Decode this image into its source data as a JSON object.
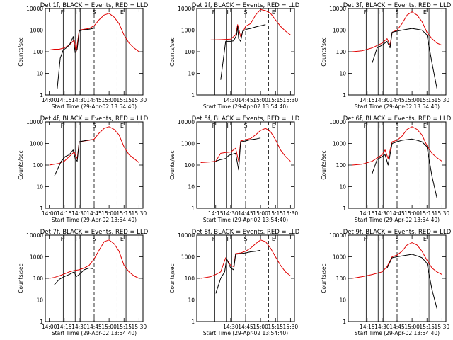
{
  "colors": {
    "events": "#000000",
    "lld": "#e00000",
    "axes": "#000000"
  },
  "chart_data": [
    {
      "type": "line",
      "title": "Det 1f, BLACK = Events, RED = LLD",
      "xlabel": "Start Time (29-Apr-02 13:54:40)",
      "ylabel": "Counts/sec",
      "yscale": "log",
      "ylim": [
        1,
        10000
      ],
      "x_ticks": [
        "14:00",
        "14:15",
        "14:30",
        "14:45",
        "15:00",
        "15:15",
        "15:30"
      ],
      "y_ticks": [
        "1",
        "10",
        "100",
        "1000",
        "10000"
      ],
      "region_labels": [
        "F",
        "I",
        "S",
        "E"
      ],
      "series": [
        {
          "name": "BLACK = Events",
          "color": "#000000",
          "x": [
            "14:08",
            "14:11",
            "14:14",
            "14:17",
            "14:20",
            "14:22",
            "14:24",
            "14:26",
            "14:28",
            "14:30",
            "14:33",
            "14:36",
            "14:40",
            "14:44"
          ],
          "y": [
            2,
            50,
            120,
            150,
            200,
            300,
            500,
            90,
            130,
            900,
            1000,
            1050,
            1100,
            1200
          ]
        },
        {
          "name": "RED = LLD",
          "color": "#e00000",
          "x": [
            "14:00",
            "14:05",
            "14:10",
            "14:15",
            "14:20",
            "14:25",
            "14:27",
            "14:30",
            "14:35",
            "14:40",
            "14:45",
            "14:50",
            "14:55",
            "15:00",
            "15:05",
            "15:10",
            "15:15",
            "15:20",
            "15:25",
            "15:30"
          ],
          "y": [
            120,
            130,
            130,
            150,
            200,
            350,
            100,
            1000,
            1100,
            1200,
            1600,
            3000,
            5000,
            6000,
            4000,
            2000,
            600,
            250,
            150,
            100
          ]
        }
      ]
    },
    {
      "type": "line",
      "title": "Det 2f, BLACK = Events, RED = LLD",
      "xlabel": "Start Time (29-Apr-02 13:54:40)",
      "ylabel": "Counts/sec",
      "yscale": "log",
      "ylim": [
        1,
        10000
      ],
      "x_ticks": [
        "14:30",
        "14:45",
        "15:00",
        "15:15",
        "15:30"
      ],
      "y_ticks": [
        "1",
        "10",
        "100",
        "1000",
        "10000"
      ],
      "region_labels": [
        "F",
        "I",
        "S",
        "E"
      ],
      "series": [
        {
          "name": "BLACK = Events",
          "color": "#000000",
          "x": [
            "14:20",
            "14:25",
            "14:30",
            "14:33",
            "14:36",
            "14:37",
            "14:38",
            "14:40",
            "14:42",
            "14:44",
            "14:46",
            "14:50",
            "14:55",
            "15:00",
            "15:05"
          ],
          "y": [
            5,
            300,
            300,
            320,
            600,
            1500,
            400,
            300,
            900,
            1000,
            1100,
            1200,
            1400,
            1600,
            1800
          ]
        },
        {
          "name": "RED = LLD",
          "color": "#e00000",
          "x": [
            "14:10",
            "14:20",
            "14:30",
            "14:35",
            "14:37",
            "14:40",
            "14:45",
            "14:50",
            "14:55",
            "15:00",
            "15:05",
            "15:10",
            "15:15",
            "15:20",
            "15:25",
            "15:30"
          ],
          "y": [
            350,
            360,
            380,
            600,
            1800,
            500,
            1500,
            2000,
            5000,
            9000,
            8000,
            6000,
            3000,
            1500,
            900,
            600
          ]
        }
      ]
    },
    {
      "type": "line",
      "title": "Det 3f, BLACK = Events, RED = LLD",
      "xlabel": "Start Time (29-Apr-02 13:54:40)",
      "ylabel": "Counts/sec",
      "yscale": "log",
      "ylim": [
        1,
        10000
      ],
      "x_ticks": [
        "14:15",
        "14:30",
        "14:45",
        "15:00",
        "15:15",
        "15:30"
      ],
      "y_ticks": [
        "1",
        "10",
        "100",
        "1000",
        "10000"
      ],
      "region_labels": [
        "F",
        "I",
        "S",
        "E"
      ],
      "series": [
        {
          "name": "BLACK = Events",
          "color": "#000000",
          "x": [
            "14:20",
            "14:25",
            "14:30",
            "14:35",
            "14:38",
            "14:40",
            "14:45",
            "14:50",
            "14:55",
            "15:00",
            "15:05",
            "15:10",
            "15:15",
            "15:20",
            "15:25"
          ],
          "y": [
            30,
            150,
            200,
            300,
            150,
            800,
            900,
            1000,
            1100,
            1200,
            1100,
            1000,
            600,
            30,
            2
          ]
        },
        {
          "name": "RED = LLD",
          "color": "#e00000",
          "x": [
            "14:00",
            "14:10",
            "14:20",
            "14:30",
            "14:35",
            "14:38",
            "14:40",
            "14:45",
            "14:50",
            "14:55",
            "15:00",
            "15:05",
            "15:10",
            "15:15",
            "15:20",
            "15:25",
            "15:30"
          ],
          "y": [
            100,
            110,
            150,
            250,
            400,
            200,
            800,
            1000,
            2000,
            5000,
            7000,
            5000,
            2500,
            800,
            400,
            250,
            200
          ]
        }
      ]
    },
    {
      "type": "line",
      "title": "Det 4f, BLACK = Events, RED = LLD",
      "xlabel": "Start Time (29-Apr-02 13:54:40)",
      "ylabel": "Counts/sec",
      "yscale": "log",
      "ylim": [
        1,
        10000
      ],
      "x_ticks": [
        "14:00",
        "14:15",
        "14:30",
        "14:45",
        "15:00",
        "15:15",
        "15:30"
      ],
      "y_ticks": [
        "1",
        "10",
        "100",
        "1000",
        "10000"
      ],
      "region_labels": [
        "F",
        "I",
        "S",
        "E"
      ],
      "series": [
        {
          "name": "BLACK = Events",
          "color": "#000000",
          "x": [
            "14:05",
            "14:08",
            "14:12",
            "14:16",
            "14:20",
            "14:24",
            "14:26",
            "14:28",
            "14:30",
            "14:34",
            "14:38",
            "14:42",
            "14:45"
          ],
          "y": [
            30,
            60,
            150,
            250,
            300,
            500,
            200,
            150,
            1200,
            1300,
            1400,
            1500,
            1400
          ]
        },
        {
          "name": "RED = LLD",
          "color": "#e00000",
          "x": [
            "14:00",
            "14:05",
            "14:10",
            "14:15",
            "14:20",
            "14:25",
            "14:28",
            "14:30",
            "14:35",
            "14:40",
            "14:45",
            "14:50",
            "14:55",
            "15:00",
            "15:05",
            "15:10",
            "15:15",
            "15:20",
            "15:25",
            "15:30"
          ],
          "y": [
            100,
            110,
            120,
            150,
            250,
            400,
            200,
            1200,
            1300,
            1400,
            1600,
            3000,
            5000,
            6000,
            4500,
            2500,
            700,
            300,
            200,
            130
          ]
        }
      ]
    },
    {
      "type": "line",
      "title": "Det 5f, BLACK = Events, RED = LLD",
      "xlabel": "Start Time (29-Apr-02 13:54:40)",
      "ylabel": "Counts/sec",
      "yscale": "log",
      "ylim": [
        1,
        10000
      ],
      "x_ticks": [
        "14:15",
        "14:30",
        "14:45",
        "15:00",
        "15:15",
        "15:30"
      ],
      "y_ticks": [
        "1",
        "10",
        "100",
        "1000",
        "10000"
      ],
      "region_labels": [
        "F",
        "I",
        "S",
        "E"
      ],
      "series": [
        {
          "name": "BLACK = Events",
          "color": "#000000",
          "x": [
            "14:15",
            "14:20",
            "14:25",
            "14:28",
            "14:30",
            "14:35",
            "14:38",
            "14:40",
            "14:45",
            "14:50",
            "14:55",
            "15:00"
          ],
          "y": [
            150,
            180,
            200,
            280,
            300,
            350,
            60,
            1200,
            1300,
            1500,
            1600,
            1800
          ]
        },
        {
          "name": "RED = LLD",
          "color": "#e00000",
          "x": [
            "14:00",
            "14:10",
            "14:15",
            "14:20",
            "14:25",
            "14:30",
            "14:35",
            "14:38",
            "14:40",
            "14:45",
            "14:50",
            "14:55",
            "15:00",
            "15:05",
            "15:10",
            "15:15",
            "15:20",
            "15:25",
            "15:30"
          ],
          "y": [
            130,
            140,
            150,
            350,
            380,
            400,
            600,
            150,
            1300,
            1500,
            1700,
            2500,
            4000,
            5000,
            3500,
            1500,
            500,
            250,
            150
          ]
        }
      ]
    },
    {
      "type": "line",
      "title": "Det 6f, BLACK = Events, RED = LLD",
      "xlabel": "Start Time (29-Apr-02 13:54:40)",
      "ylabel": "Counts/sec",
      "yscale": "log",
      "ylim": [
        1,
        10000
      ],
      "x_ticks": [
        "14:15",
        "14:30",
        "14:45",
        "15:00",
        "15:15",
        "15:30"
      ],
      "y_ticks": [
        "1",
        "10",
        "100",
        "1000",
        "10000"
      ],
      "region_labels": [
        "F",
        "I",
        "S",
        "E"
      ],
      "series": [
        {
          "name": "BLACK = Events",
          "color": "#000000",
          "x": [
            "14:20",
            "14:25",
            "14:30",
            "14:33",
            "14:36",
            "14:40",
            "14:45",
            "14:50",
            "14:55",
            "15:00",
            "15:05",
            "15:10",
            "15:15",
            "15:20",
            "15:25"
          ],
          "y": [
            40,
            180,
            250,
            300,
            100,
            1000,
            1200,
            1400,
            1500,
            1600,
            1400,
            1200,
            700,
            30,
            3
          ]
        },
        {
          "name": "RED = LLD",
          "color": "#e00000",
          "x": [
            "14:00",
            "14:10",
            "14:20",
            "14:30",
            "14:33",
            "14:36",
            "14:40",
            "14:45",
            "14:50",
            "14:55",
            "15:00",
            "15:05",
            "15:10",
            "15:15",
            "15:20",
            "15:25",
            "15:30"
          ],
          "y": [
            100,
            110,
            150,
            300,
            500,
            200,
            1200,
            1400,
            2200,
            4500,
            6000,
            4500,
            2500,
            800,
            350,
            220,
            150
          ]
        }
      ]
    },
    {
      "type": "line",
      "title": "Det 7f, BLACK = Events, RED = LLD",
      "xlabel": "Start Time (29-Apr-02 13:54:40)",
      "ylabel": "Counts/sec",
      "yscale": "log",
      "ylim": [
        1,
        10000
      ],
      "x_ticks": [
        "14:00",
        "14:15",
        "14:30",
        "14:45",
        "15:00",
        "15:15",
        "15:30"
      ],
      "y_ticks": [
        "1",
        "10",
        "100",
        "1000",
        "10000"
      ],
      "region_labels": [
        "F",
        "I",
        "S",
        "E"
      ],
      "series": [
        {
          "name": "BLACK = Events",
          "color": "#000000",
          "x": [
            "14:05",
            "14:10",
            "14:15",
            "14:20",
            "14:25",
            "14:27",
            "14:30",
            "14:35",
            "14:40",
            "14:44"
          ],
          "y": [
            50,
            90,
            120,
            150,
            200,
            120,
            150,
            250,
            300,
            280
          ]
        },
        {
          "name": "RED = LLD",
          "color": "#e00000",
          "x": [
            "14:00",
            "14:05",
            "14:10",
            "14:15",
            "14:20",
            "14:25",
            "14:30",
            "14:35",
            "14:40",
            "14:45",
            "14:50",
            "14:55",
            "15:00",
            "15:05",
            "15:10",
            "15:15",
            "15:20",
            "15:25",
            "15:30"
          ],
          "y": [
            100,
            110,
            130,
            160,
            200,
            230,
            250,
            300,
            400,
            800,
            2000,
            5000,
            6000,
            4000,
            1800,
            400,
            200,
            130,
            100
          ]
        }
      ]
    },
    {
      "type": "line",
      "title": "Det 8f, BLACK = Events, RED = LLD",
      "xlabel": "Start Time (29-Apr-02 13:54:40)",
      "ylabel": "Counts/sec",
      "yscale": "log",
      "ylim": [
        1,
        10000
      ],
      "x_ticks": [
        "14:30",
        "14:45",
        "15:00",
        "15:15",
        "15:30"
      ],
      "y_ticks": [
        "1",
        "10",
        "100",
        "1000",
        "10000"
      ],
      "region_labels": [
        "F",
        "I",
        "S",
        "E"
      ],
      "series": [
        {
          "name": "BLACK = Events",
          "color": "#000000",
          "x": [
            "14:15",
            "14:20",
            "14:24",
            "14:26",
            "14:30",
            "14:33",
            "14:35",
            "14:40",
            "14:45",
            "14:50",
            "14:55",
            "15:00"
          ],
          "y": [
            20,
            100,
            200,
            800,
            300,
            250,
            1300,
            1400,
            1500,
            1700,
            1800,
            2000
          ]
        },
        {
          "name": "RED = LLD",
          "color": "#e00000",
          "x": [
            "14:00",
            "14:10",
            "14:15",
            "14:20",
            "14:25",
            "14:30",
            "14:33",
            "14:35",
            "14:40",
            "14:45",
            "14:50",
            "14:55",
            "15:00",
            "15:05",
            "15:10",
            "15:15",
            "15:20",
            "15:25",
            "15:30"
          ],
          "y": [
            100,
            120,
            150,
            200,
            900,
            400,
            350,
            1400,
            1500,
            1800,
            2500,
            4000,
            6000,
            5000,
            2500,
            1000,
            400,
            200,
            130
          ]
        }
      ]
    },
    {
      "type": "line",
      "title": "Det 9f, BLACK = Events, RED = LLD",
      "xlabel": "Start Time (29-Apr-02 13:54:40)",
      "ylabel": "Counts/sec",
      "yscale": "log",
      "ylim": [
        1,
        10000
      ],
      "x_ticks": [
        "14:15",
        "14:30",
        "14:45",
        "15:00",
        "15:15",
        "15:30"
      ],
      "y_ticks": [
        "1",
        "10",
        "100",
        "1000",
        "10000"
      ],
      "region_labels": [
        "F",
        "I",
        "S",
        "E"
      ],
      "series": [
        {
          "name": "BLACK = Events",
          "color": "#000000",
          "x": [
            "14:35",
            "14:40",
            "14:45",
            "14:50",
            "14:55",
            "15:00",
            "15:05",
            "15:10",
            "15:15",
            "15:20",
            "15:25"
          ],
          "y": [
            300,
            900,
            1000,
            1100,
            1200,
            1300,
            1100,
            900,
            500,
            30,
            4
          ]
        },
        {
          "name": "RED = LLD",
          "color": "#e00000",
          "x": [
            "14:00",
            "14:10",
            "14:20",
            "14:30",
            "14:35",
            "14:40",
            "14:45",
            "14:50",
            "14:55",
            "15:00",
            "15:05",
            "15:10",
            "15:15",
            "15:20",
            "15:25",
            "15:30"
          ],
          "y": [
            100,
            120,
            150,
            200,
            350,
            1000,
            1200,
            1800,
            3500,
            4500,
            3500,
            1800,
            700,
            300,
            200,
            150
          ]
        }
      ]
    }
  ]
}
